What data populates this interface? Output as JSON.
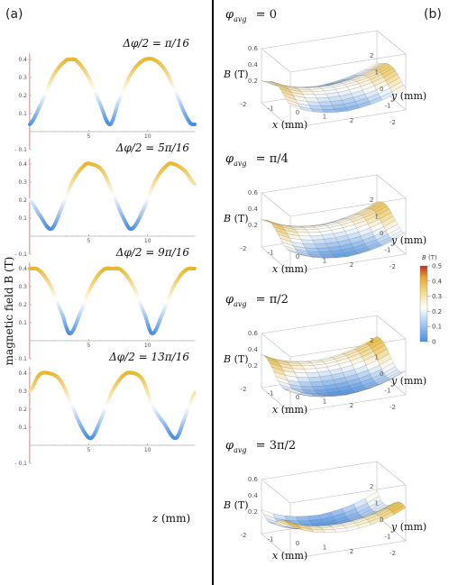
{
  "panel_a_label": "(a)",
  "panel_b_label": "(b)",
  "y_axis_label": "magnetic field B (T)",
  "x_axis_label": "z (mm)",
  "colors": {
    "low": "#4a8ee0",
    "mid": "#ffffff",
    "high": "#e8b830",
    "divider": "#000000"
  },
  "chart_data": [
    {
      "type": "line",
      "annotation": "Δφ/2 = π/16",
      "xlabel": "z (mm)",
      "ylabel": "magnetic field B (T)",
      "xlim": [
        0,
        14
      ],
      "ylim": [
        -0.1,
        0.45
      ],
      "xticks": [
        "5",
        "10"
      ],
      "yticks": [
        "- 0.1",
        "0.1",
        "0.2",
        "0.3",
        "0.4"
      ],
      "series": [
        {
          "x": [
            0,
            1,
            2,
            3,
            3.5,
            4,
            5,
            6,
            6.8,
            7.5,
            8.5,
            9.5,
            10.5,
            11.5,
            12.5,
            13.5,
            14
          ],
          "y": [
            0.04,
            0.16,
            0.31,
            0.39,
            0.4,
            0.39,
            0.3,
            0.15,
            0.04,
            0.16,
            0.31,
            0.39,
            0.4,
            0.34,
            0.2,
            0.06,
            0.04
          ]
        }
      ]
    },
    {
      "type": "line",
      "annotation": "Δφ/2 = 5π/16",
      "xlabel": "z (mm)",
      "ylabel": "magnetic field B (T)",
      "xlim": [
        0,
        14
      ],
      "ylim": [
        -0.1,
        0.45
      ],
      "xticks": [
        "5",
        "10"
      ],
      "yticks": [
        "- 0.1",
        "0.1",
        "0.2",
        "0.3",
        "0.4"
      ],
      "series": [
        {
          "x": [
            0,
            0.8,
            1.8,
            2.6,
            3.6,
            4.6,
            5.2,
            6.2,
            7.2,
            7.8,
            8.6,
            9.6,
            10.6,
            11.6,
            12.2,
            13.2,
            14
          ],
          "y": [
            0.2,
            0.12,
            0.04,
            0.14,
            0.3,
            0.39,
            0.4,
            0.36,
            0.22,
            0.12,
            0.04,
            0.14,
            0.3,
            0.39,
            0.4,
            0.36,
            0.29
          ]
        }
      ]
    },
    {
      "type": "line",
      "annotation": "Δφ/2 = 9π/16",
      "xlabel": "z (mm)",
      "ylabel": "magnetic field B (T)",
      "xlim": [
        0,
        14
      ],
      "ylim": [
        -0.1,
        0.45
      ],
      "xticks": [
        "5",
        "10"
      ],
      "yticks": [
        "- 0.1",
        "0.1",
        "0.2",
        "0.3",
        "0.4"
      ],
      "series": [
        {
          "x": [
            0,
            0.8,
            1.8,
            2.8,
            3.4,
            4.2,
            5.2,
            6.2,
            7,
            7.8,
            8.8,
            9.8,
            10.4,
            11.2,
            12.2,
            13.2,
            14
          ],
          "y": [
            0.4,
            0.39,
            0.3,
            0.14,
            0.04,
            0.14,
            0.3,
            0.39,
            0.4,
            0.39,
            0.3,
            0.14,
            0.04,
            0.14,
            0.3,
            0.39,
            0.4
          ]
        }
      ]
    },
    {
      "type": "line",
      "annotation": "Δφ/2 = 13π/16",
      "xlabel": "z (mm)",
      "ylabel": "magnetic field B (T)",
      "xlim": [
        0,
        14
      ],
      "ylim": [
        -0.1,
        0.45
      ],
      "xticks": [
        "5",
        "10"
      ],
      "yticks": [
        "- 0.1",
        "0.1",
        "0.2",
        "0.3",
        "0.4"
      ],
      "series": [
        {
          "x": [
            0,
            0.8,
            1.6,
            2.6,
            3.6,
            4.4,
            5.2,
            6,
            7,
            8,
            8.8,
            9.6,
            10.4,
            11.4,
            12.4,
            13.2,
            14
          ],
          "y": [
            0.3,
            0.39,
            0.4,
            0.36,
            0.22,
            0.1,
            0.04,
            0.14,
            0.3,
            0.39,
            0.4,
            0.36,
            0.22,
            0.12,
            0.04,
            0.16,
            0.29
          ]
        }
      ]
    },
    {
      "type": "surface",
      "title": "φavg = 0",
      "xlabel": "x (mm)",
      "ylabel": "y (mm)",
      "zlabel": "B (T)",
      "xticks": [
        "-2",
        "-1",
        "0",
        "1",
        "2"
      ],
      "yticks": [
        "-2",
        "-1",
        "0",
        "1",
        "2"
      ],
      "zticks": [
        "0.2",
        "0.4",
        "0.6"
      ]
    },
    {
      "type": "surface",
      "title": "φavg = π/4",
      "xlabel": "x (mm)",
      "ylabel": "y (mm)",
      "zlabel": "B (T)",
      "xticks": [
        "-2",
        "-1",
        "0",
        "1",
        "2"
      ],
      "yticks": [
        "-2",
        "-1",
        "0",
        "1",
        "2"
      ],
      "zticks": [
        "0.2",
        "0.4",
        "0.6"
      ]
    },
    {
      "type": "surface",
      "title": "φavg = π/2",
      "xlabel": "x (mm)",
      "ylabel": "y (mm)",
      "zlabel": "B (T)",
      "xticks": [
        "-2",
        "-1",
        "0",
        "1",
        "2"
      ],
      "yticks": [
        "-2",
        "-1",
        "0",
        "1",
        "2"
      ],
      "zticks": [
        "0.2",
        "0.4",
        "0.6"
      ]
    },
    {
      "type": "surface",
      "title": "φavg = 3π/2",
      "xlabel": "x (mm)",
      "ylabel": "y (mm)",
      "zlabel": "B (T)",
      "xticks": [
        "-2",
        "-1",
        "0",
        "1",
        "2"
      ],
      "yticks": [
        "-2",
        "-1",
        "0",
        "1",
        "2"
      ],
      "zticks": [
        "0.2",
        "0.4",
        "0.6"
      ]
    },
    {
      "type": "heatmap",
      "title": "B (T)",
      "ticks": [
        "0.5",
        "0.4",
        "0.3",
        "0.2",
        "0.1",
        "0"
      ],
      "range": [
        0,
        0.5
      ]
    }
  ],
  "surface_labels": [
    {
      "phi": "φ",
      "sub": "avg",
      "val": "= 0",
      "z": "B (T)",
      "x": "x (mm)",
      "y": "y (mm)"
    },
    {
      "phi": "φ",
      "sub": "avg",
      "val": "= π/4",
      "z": "B (T)",
      "x": "x (mm)",
      "y": "y (mm)"
    },
    {
      "phi": "φ",
      "sub": "avg",
      "val": "= π/2",
      "z": "B (T)",
      "x": "x (mm)",
      "y": "y (mm)"
    },
    {
      "phi": "φ",
      "sub": "avg",
      "val": "= 3π/2",
      "z": "B (T)",
      "x": "x (mm)",
      "y": "y (mm)"
    }
  ],
  "colorbar_title": "B (T)"
}
